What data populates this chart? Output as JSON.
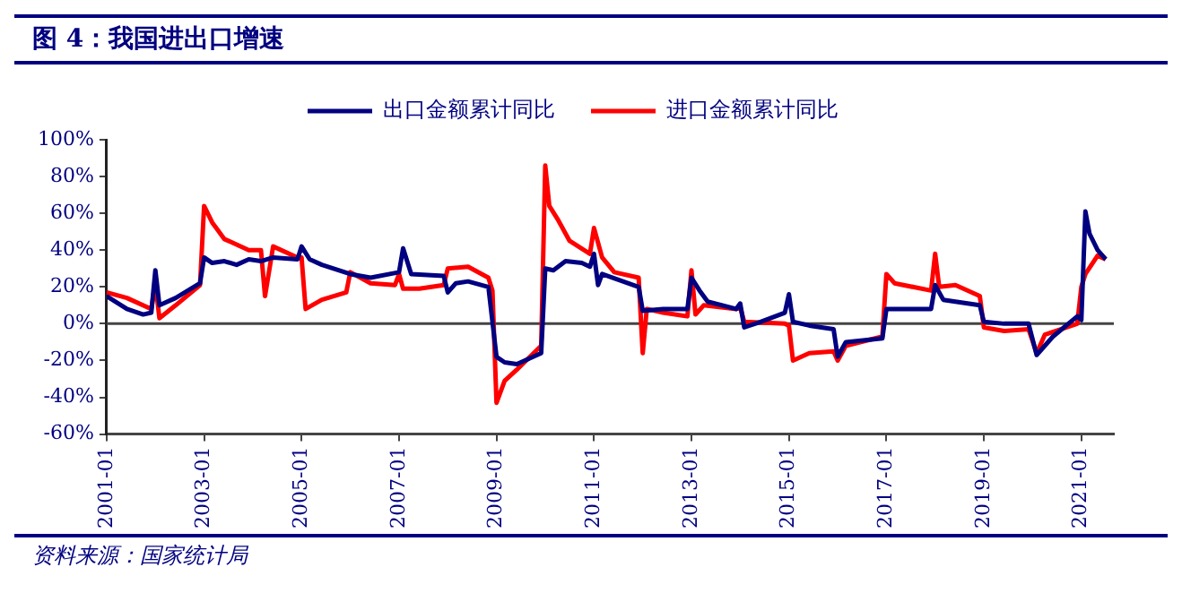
{
  "chart_data": {
    "type": "line",
    "title": "图 4：我国进出口增速",
    "annotations": [
      "资料来源：国家统计局"
    ],
    "xlim": [
      "2001-01",
      "2021-09"
    ],
    "xticks": [
      "2001-01",
      "2003-01",
      "2005-01",
      "2007-01",
      "2009-01",
      "2011-01",
      "2013-01",
      "2015-01",
      "2017-01",
      "2019-01",
      "2021-01"
    ],
    "ylim": [
      -60,
      100
    ],
    "yticks": [
      {
        "value": -60,
        "label": "-60%"
      },
      {
        "value": -40,
        "label": "-40%"
      },
      {
        "value": -20,
        "label": "-20%"
      },
      {
        "value": 0,
        "label": "0%"
      },
      {
        "value": 20,
        "label": "20%"
      },
      {
        "value": 40,
        "label": "40%"
      },
      {
        "value": 60,
        "label": "60%"
      },
      {
        "value": 80,
        "label": "80%"
      },
      {
        "value": 100,
        "label": "100%"
      }
    ],
    "grid": false,
    "ref_lines": [
      {
        "axis": "y",
        "value": 0,
        "color": "#444444"
      }
    ],
    "legend": "top",
    "marker": "none",
    "line_style": "solid",
    "series": [
      {
        "name": "出口金额累计同比",
        "color": "#000080",
        "x": [
          "2001-01",
          "2001-06",
          "2001-10",
          "2001-12",
          "2002-01",
          "2002-02",
          "2002-06",
          "2002-12",
          "2003-01",
          "2003-03",
          "2003-06",
          "2003-09",
          "2003-12",
          "2004-03",
          "2004-06",
          "2004-12",
          "2005-01",
          "2005-03",
          "2005-06",
          "2006-01",
          "2006-06",
          "2007-01",
          "2007-02",
          "2007-04",
          "2007-12",
          "2008-01",
          "2008-03",
          "2008-06",
          "2008-11",
          "2009-01",
          "2009-03",
          "2009-06",
          "2009-12",
          "2010-01",
          "2010-03",
          "2010-06",
          "2010-10",
          "2010-12",
          "2011-01",
          "2011-02",
          "2011-03",
          "2011-12",
          "2012-01",
          "2012-06",
          "2012-12",
          "2013-01",
          "2013-03",
          "2013-05",
          "2013-12",
          "2014-01",
          "2014-02",
          "2014-06",
          "2014-12",
          "2015-01",
          "2015-02",
          "2015-06",
          "2015-12",
          "2016-01",
          "2016-03",
          "2016-12",
          "2017-01",
          "2017-03",
          "2017-12",
          "2018-01",
          "2018-03",
          "2018-12",
          "2019-01",
          "2019-06",
          "2019-12",
          "2020-02",
          "2020-06",
          "2020-12",
          "2021-01",
          "2021-02",
          "2021-03",
          "2021-05",
          "2021-07"
        ],
        "values": [
          15,
          8,
          5,
          6,
          29,
          10,
          14,
          22,
          36,
          33,
          34,
          32,
          35,
          34,
          36,
          35,
          42,
          35,
          32,
          27,
          25,
          28,
          41,
          27,
          26,
          17,
          22,
          23,
          20,
          -18,
          -21,
          -22,
          -16,
          30,
          29,
          34,
          33,
          31,
          38,
          21,
          27,
          20,
          7,
          8,
          8,
          25,
          18,
          12,
          8,
          11,
          -2,
          1,
          6,
          16,
          1,
          -1,
          -3,
          -18,
          -10,
          -8,
          8,
          8,
          8,
          21,
          13,
          10,
          1,
          0,
          0,
          -17,
          -7,
          4,
          2,
          61,
          49,
          40,
          35
        ]
      },
      {
        "name": "进口金额累计同比",
        "color": "#ff0000",
        "x": [
          "2001-01",
          "2001-06",
          "2001-12",
          "2002-01",
          "2002-02",
          "2002-06",
          "2002-12",
          "2003-01",
          "2003-03",
          "2003-06",
          "2003-12",
          "2004-03",
          "2004-04",
          "2004-06",
          "2004-12",
          "2005-01",
          "2005-02",
          "2005-06",
          "2005-12",
          "2006-01",
          "2006-06",
          "2006-12",
          "2007-01",
          "2007-02",
          "2007-06",
          "2007-12",
          "2008-01",
          "2008-06",
          "2008-11",
          "2008-12",
          "2009-01",
          "2009-03",
          "2009-06",
          "2009-12",
          "2010-01",
          "2010-02",
          "2010-04",
          "2010-07",
          "2010-12",
          "2011-01",
          "2011-03",
          "2011-06",
          "2011-12",
          "2012-01",
          "2012-02",
          "2012-06",
          "2012-12",
          "2013-01",
          "2013-02",
          "2013-04",
          "2013-12",
          "2014-01",
          "2014-02",
          "2014-12",
          "2015-01",
          "2015-02",
          "2015-06",
          "2015-12",
          "2016-01",
          "2016-03",
          "2016-12",
          "2017-01",
          "2017-03",
          "2017-12",
          "2018-01",
          "2018-02",
          "2018-06",
          "2018-12",
          "2019-01",
          "2019-06",
          "2019-12",
          "2020-02",
          "2020-04",
          "2020-12",
          "2021-01",
          "2021-02",
          "2021-05",
          "2021-07"
        ],
        "values": [
          17,
          14,
          8,
          22,
          3,
          10,
          21,
          64,
          55,
          46,
          40,
          40,
          15,
          42,
          36,
          36,
          8,
          13,
          17,
          28,
          22,
          21,
          27,
          19,
          19,
          21,
          30,
          31,
          25,
          18,
          -43,
          -31,
          -25,
          -12,
          86,
          64,
          57,
          45,
          38,
          52,
          36,
          28,
          25,
          -16,
          8,
          6,
          4,
          29,
          5,
          10,
          8,
          9,
          1,
          0,
          -1,
          -20,
          -16,
          -15,
          -20,
          -12,
          -7,
          27,
          22,
          18,
          38,
          20,
          21,
          15,
          -2,
          -4,
          -3,
          -16,
          -6,
          0,
          20,
          27,
          37,
          35
        ]
      }
    ]
  }
}
